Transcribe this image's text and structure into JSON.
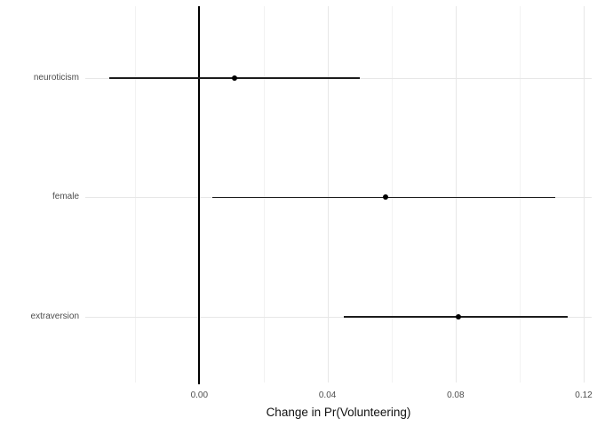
{
  "chart_data": {
    "type": "scatter",
    "subtype": "coefficient-pointrange",
    "title": "",
    "xlabel": "Change in Pr(Volunteering)",
    "ylabel": "",
    "categories": [
      "neuroticism",
      "female",
      "extraversion"
    ],
    "points": [
      {
        "label": "neuroticism",
        "estimate": 0.011,
        "lower": -0.028,
        "upper": 0.05
      },
      {
        "label": "female",
        "estimate": 0.058,
        "lower": 0.004,
        "upper": 0.111
      },
      {
        "label": "extraversion",
        "estimate": 0.081,
        "lower": 0.045,
        "upper": 0.115
      }
    ],
    "x_major_ticks": [
      0.0,
      0.04,
      0.08,
      0.12
    ],
    "x_tick_labels": [
      "0.00",
      "0.04",
      "0.08",
      "0.12"
    ],
    "x_minor_ticks": [
      -0.02,
      0.02,
      0.06,
      0.1
    ],
    "xlim": [
      -0.0356,
      0.1225
    ],
    "reference_line_x": 0,
    "grid": true,
    "legend": false,
    "colors": {
      "point": "#000000",
      "interval_line": "#1c1c1c",
      "reference_line": "#000000",
      "grid_major": "#e7e7e7",
      "grid_minor": "#f2f2f2",
      "axis_text": "#4d4d4d",
      "axis_title": "#111111",
      "background": "#ffffff"
    }
  }
}
